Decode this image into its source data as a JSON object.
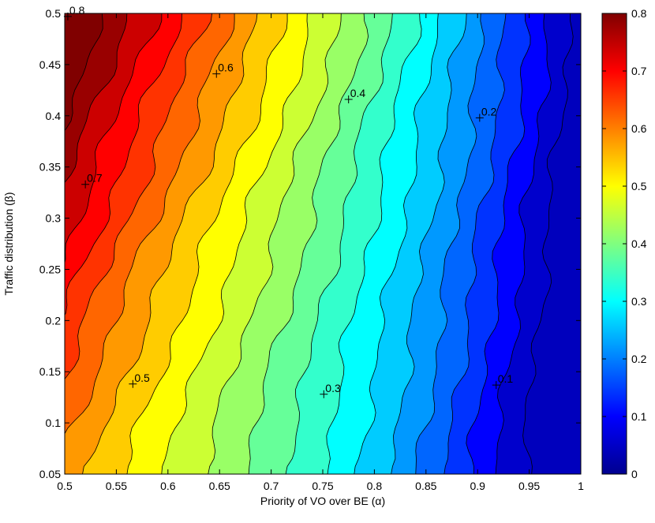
{
  "chart_data": {
    "type": "heatmap",
    "subtype": "filled-contour",
    "title": "",
    "xlabel": "Priority of VO over BE (α)",
    "ylabel": "Traffic distribution (β)",
    "xlim": [
      0.5,
      1.0
    ],
    "ylim": [
      0.05,
      0.5
    ],
    "x_ticks": [
      0.5,
      0.55,
      0.6,
      0.65,
      0.7,
      0.75,
      0.8,
      0.85,
      0.9,
      0.95,
      1.0
    ],
    "x_tick_labels": [
      "0.5",
      "0.55",
      "0.6",
      "0.65",
      "0.7",
      "0.75",
      "0.8",
      "0.85",
      "0.9",
      "0.95",
      "1"
    ],
    "y_ticks": [
      0.05,
      0.1,
      0.15,
      0.2,
      0.25,
      0.3,
      0.35,
      0.4,
      0.45,
      0.5
    ],
    "y_tick_labels": [
      "0.05",
      "0.1",
      "0.15",
      "0.2",
      "0.25",
      "0.3",
      "0.35",
      "0.4",
      "0.45",
      "0.5"
    ],
    "z_range": [
      0,
      0.8
    ],
    "contour_step": 0.04,
    "colormap": "jet",
    "colorbar": {
      "ticks": [
        0,
        0.1,
        0.2,
        0.3,
        0.4,
        0.5,
        0.6,
        0.7,
        0.8
      ],
      "tick_labels": [
        "0",
        "0.1",
        "0.2",
        "0.3",
        "0.4",
        "0.5",
        "0.6",
        "0.7",
        "0.8"
      ]
    },
    "contour_line_color": "#000000",
    "contour_labels": [
      {
        "text": "0.8",
        "x": 0.503,
        "y": 0.497
      },
      {
        "text": "0.7",
        "x": 0.52,
        "y": 0.333
      },
      {
        "text": "0.6",
        "x": 0.647,
        "y": 0.441
      },
      {
        "text": "0.5",
        "x": 0.566,
        "y": 0.138
      },
      {
        "text": "0.4",
        "x": 0.775,
        "y": 0.416
      },
      {
        "text": "0.3",
        "x": 0.751,
        "y": 0.128
      },
      {
        "text": "0.2",
        "x": 0.902,
        "y": 0.398
      },
      {
        "text": "0.1",
        "x": 0.918,
        "y": 0.137
      }
    ]
  }
}
